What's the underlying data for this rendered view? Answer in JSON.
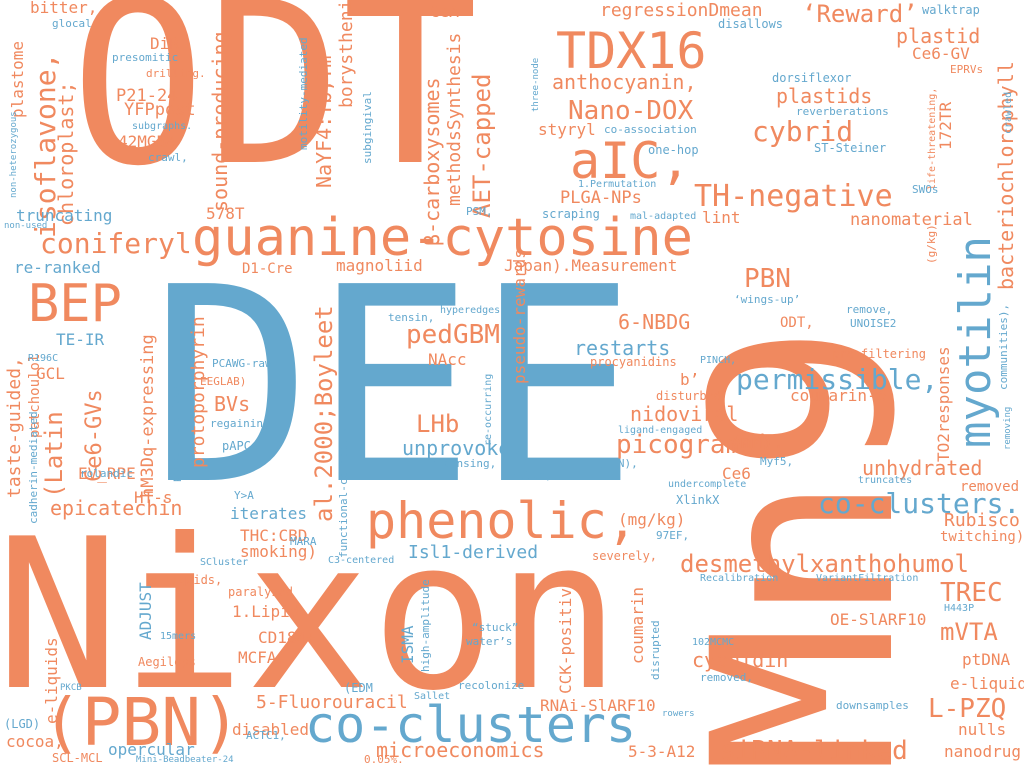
{
  "colors": {
    "orange": "#f0895f",
    "blue": "#64a8ce",
    "background": "#ffffff"
  },
  "words": [
    {
      "text": "ODT",
      "color": "orange"
    },
    {
      "text": "DEE",
      "color": "blue"
    },
    {
      "text": "Nixon",
      "color": "orange"
    },
    {
      "text": "Mn9",
      "color": "orange"
    },
    {
      "text": "guanine-cytosine",
      "color": "orange"
    },
    {
      "text": "phenolic,",
      "color": "orange"
    },
    {
      "text": "(PBN)",
      "color": "orange"
    },
    {
      "text": "co-clusters",
      "color": "blue"
    },
    {
      "text": "aIC,",
      "color": "orange"
    },
    {
      "text": "TDX16",
      "color": "orange"
    },
    {
      "text": "BEP",
      "color": "orange"
    },
    {
      "text": "myotilin",
      "color": "blue"
    },
    {
      "text": "TH-negative",
      "color": "orange"
    },
    {
      "text": "coniferyl",
      "color": "orange"
    },
    {
      "text": "isoflavone,",
      "color": "orange"
    },
    {
      "text": "pedGBM",
      "color": "orange"
    },
    {
      "text": "permissible,",
      "color": "blue"
    },
    {
      "text": "co-clusters.",
      "color": "blue"
    },
    {
      "text": "picograms)",
      "color": "orange"
    },
    {
      "text": "desmethylxanthohumol",
      "color": "orange"
    },
    {
      "text": "siRNA-linked",
      "color": "orange"
    },
    {
      "text": "cybrid",
      "color": "orange"
    },
    {
      "text": "Nano-DOX",
      "color": "orange"
    },
    {
      "text": "LHb",
      "color": "orange"
    },
    {
      "text": "PBN",
      "color": "orange"
    },
    {
      "text": "TREC",
      "color": "orange"
    },
    {
      "text": "L-PZQ",
      "color": "orange"
    },
    {
      "text": "‘Reward’",
      "color": "orange"
    },
    {
      "text": "AET-capped",
      "color": "orange"
    },
    {
      "text": "al.2000;Boyleet",
      "color": "orange"
    },
    {
      "text": "NaYF4:Yb,Tm",
      "color": "orange"
    },
    {
      "text": "bacteriochlorophyll",
      "color": "orange"
    },
    {
      "text": "epicatechin",
      "color": "orange"
    },
    {
      "text": "(Latin",
      "color": "orange"
    },
    {
      "text": "Ce6-GVs",
      "color": "orange"
    },
    {
      "text": "plastid",
      "color": "orange"
    },
    {
      "text": "plastids",
      "color": "orange"
    },
    {
      "text": "anthocyanin,",
      "color": "orange"
    },
    {
      "text": "regressionDmean",
      "color": "orange"
    },
    {
      "text": "unprovoked",
      "color": "blue"
    },
    {
      "text": "unhydrated",
      "color": "orange"
    },
    {
      "text": "restarts",
      "color": "blue"
    },
    {
      "text": "nidoviral",
      "color": "orange"
    },
    {
      "text": "mVTA",
      "color": "orange"
    },
    {
      "text": "Rubisco",
      "color": "orange"
    },
    {
      "text": "cyanidin",
      "color": "orange"
    },
    {
      "text": "microeconomics",
      "color": "orange"
    },
    {
      "text": "5-Fluorouracil",
      "color": "orange"
    },
    {
      "text": "Isl1-derived",
      "color": "blue"
    },
    {
      "text": "chloroplast;",
      "color": "orange"
    },
    {
      "text": "sound-producing",
      "color": "orange"
    },
    {
      "text": "β-carboxysomes",
      "color": "orange"
    },
    {
      "text": "methodsSynthesis",
      "color": "orange"
    },
    {
      "text": "magnoliid",
      "color": "orange"
    },
    {
      "text": "Japan).Measurement",
      "color": "orange"
    },
    {
      "text": "6-NBDG",
      "color": "orange"
    },
    {
      "text": "BVs",
      "color": "orange"
    },
    {
      "text": "protoporphyrin",
      "color": "orange"
    },
    {
      "text": "hM3Dq-expressing",
      "color": "orange"
    },
    {
      "text": "taste-guided,",
      "color": "orange"
    },
    {
      "text": "patchoulol",
      "color": "orange"
    },
    {
      "text": "EV_RPE",
      "color": "orange"
    },
    {
      "text": "GCL",
      "color": "orange"
    },
    {
      "text": "TE-IR",
      "color": "blue"
    },
    {
      "text": "re-ranked",
      "color": "blue"
    },
    {
      "text": "truncating",
      "color": "blue"
    },
    {
      "text": "578T",
      "color": "orange"
    },
    {
      "text": "D1-Cre",
      "color": "orange"
    },
    {
      "text": "PLGA-NPs",
      "color": "orange"
    },
    {
      "text": "lint",
      "color": "orange"
    },
    {
      "text": "nanomaterial",
      "color": "orange"
    },
    {
      "text": "styryl",
      "color": "orange"
    },
    {
      "text": "CeA",
      "color": "orange"
    },
    {
      "text": "bitter,",
      "color": "orange"
    },
    {
      "text": "DiR",
      "color": "orange"
    },
    {
      "text": "P21-24",
      "color": "orange"
    },
    {
      "text": "YFPpost",
      "color": "orange"
    },
    {
      "text": "42MGBA",
      "color": "orange"
    },
    {
      "text": "plastome",
      "color": "orange"
    },
    {
      "text": "borysthenica,",
      "color": "orange"
    },
    {
      "text": "pseudo-rewards",
      "color": "orange"
    },
    {
      "text": "NAcc",
      "color": "orange"
    },
    {
      "text": "coumarin-6",
      "color": "orange"
    },
    {
      "text": "TO2responses",
      "color": "orange"
    },
    {
      "text": "172TR",
      "color": "orange"
    },
    {
      "text": "Ce6-GV",
      "color": "orange"
    },
    {
      "text": "(mg/kg)",
      "color": "orange"
    },
    {
      "text": "(mM).",
      "color": "orange"
    },
    {
      "text": "THC:CBD",
      "color": "orange"
    },
    {
      "text": "smoking)",
      "color": "orange"
    },
    {
      "text": "iterates",
      "color": "blue"
    },
    {
      "text": "HT-s",
      "color": "orange"
    },
    {
      "text": "ADJUST",
      "color": "blue"
    },
    {
      "text": "1.Lipid",
      "color": "orange"
    },
    {
      "text": "CD184+",
      "color": "orange"
    },
    {
      "text": "MCFA,",
      "color": "orange"
    },
    {
      "text": "CCK-positive",
      "color": "orange"
    },
    {
      "text": "ISMA",
      "color": "blue"
    },
    {
      "text": "coumarin",
      "color": "orange"
    },
    {
      "text": "RNAi-SlARF10",
      "color": "orange"
    },
    {
      "text": "OE-SlARF10",
      "color": "orange"
    },
    {
      "text": "ptDNA",
      "color": "orange"
    },
    {
      "text": "e-liquid,",
      "color": "orange"
    },
    {
      "text": "nanodrug",
      "color": "orange"
    },
    {
      "text": "nulls",
      "color": "orange"
    },
    {
      "text": "cocoa,",
      "color": "orange"
    },
    {
      "text": "opercular",
      "color": "blue"
    },
    {
      "text": "disabled",
      "color": "orange"
    },
    {
      "text": "5-3-A12",
      "color": "orange"
    },
    {
      "text": "e-liquids",
      "color": "orange"
    },
    {
      "text": "Ce6",
      "color": "orange"
    },
    {
      "text": "ODT,",
      "color": "orange"
    },
    {
      "text": "b’",
      "color": "orange"
    },
    {
      "text": "removed",
      "color": "orange"
    },
    {
      "text": "twitching).",
      "color": "orange"
    },
    {
      "text": "e-liquids,",
      "color": "orange"
    },
    {
      "text": "paralyzed",
      "color": "orange"
    },
    {
      "text": "Aegilops",
      "color": "orange"
    },
    {
      "text": "severely,",
      "color": "orange"
    },
    {
      "text": "disturbed",
      "color": "orange"
    },
    {
      "text": "procyanidins",
      "color": "orange"
    },
    {
      "text": "pre-filtering",
      "color": "orange"
    },
    {
      "text": "EEGLAB)",
      "color": "orange"
    },
    {
      "text": "pAPC",
      "color": "blue"
    },
    {
      "text": "(EDM",
      "color": "blue"
    },
    {
      "text": "ACTC1,",
      "color": "blue"
    },
    {
      "text": "0.05%.",
      "color": "orange"
    },
    {
      "text": "SCL-MCL",
      "color": "orange"
    },
    {
      "text": "(LGD)",
      "color": "blue"
    },
    {
      "text": "functional-connectivity",
      "color": "blue"
    },
    {
      "text": "motility-mediated",
      "color": "blue"
    },
    {
      "text": "subgingival",
      "color": "blue"
    },
    {
      "text": "three-node",
      "color": "blue"
    },
    {
      "text": "reverberations",
      "color": "blue"
    },
    {
      "text": "dorsiflexor",
      "color": "blue"
    },
    {
      "text": "ST-Steiner",
      "color": "blue"
    },
    {
      "text": "co-association",
      "color": "blue"
    },
    {
      "text": "one-hop",
      "color": "blue"
    },
    {
      "text": "1.Permutation",
      "color": "blue"
    },
    {
      "text": "mal-adapted",
      "color": "blue"
    },
    {
      "text": "scraping",
      "color": "blue"
    },
    {
      "text": "PSM,",
      "color": "blue"
    },
    {
      "text": "walktrap",
      "color": "blue"
    },
    {
      "text": "disallows",
      "color": "blue"
    },
    {
      "text": "glocal",
      "color": "blue"
    },
    {
      "text": "presomitic",
      "color": "blue"
    },
    {
      "text": "drilling.",
      "color": "orange"
    },
    {
      "text": "subgraphs.",
      "color": "blue"
    },
    {
      "text": "crawl,",
      "color": "blue"
    },
    {
      "text": "non-heterozygous",
      "color": "blue"
    },
    {
      "text": "non-used",
      "color": "blue"
    },
    {
      "text": "EPRVs",
      "color": "orange"
    },
    {
      "text": "life-threatening,",
      "color": "orange"
    },
    {
      "text": "crawled",
      "color": "blue"
    },
    {
      "text": "SWOs",
      "color": "blue"
    },
    {
      "text": "(g/kg)",
      "color": "orange"
    },
    {
      "text": "‘wings-up’",
      "color": "blue"
    },
    {
      "text": "remove,",
      "color": "blue"
    },
    {
      "text": "UNOISE2",
      "color": "blue"
    },
    {
      "text": "communities),",
      "color": "blue"
    },
    {
      "text": "removing",
      "color": "blue"
    },
    {
      "text": "tensin,",
      "color": "blue"
    },
    {
      "text": "hyperedges",
      "color": "blue"
    },
    {
      "text": "PCAWG-raw",
      "color": "blue"
    },
    {
      "text": "re-occurring",
      "color": "blue"
    },
    {
      "text": "cleansing,",
      "color": "blue"
    },
    {
      "text": "nulls,",
      "color": "blue"
    },
    {
      "text": "(TTN),",
      "color": "blue"
    },
    {
      "text": "ligand-engaged",
      "color": "blue"
    },
    {
      "text": "PINCH,",
      "color": "blue"
    },
    {
      "text": "Myf5,",
      "color": "blue"
    },
    {
      "text": "truncates",
      "color": "blue"
    },
    {
      "text": "undercomplete",
      "color": "blue"
    },
    {
      "text": "XlinkX",
      "color": "blue"
    },
    {
      "text": "97EF,",
      "color": "blue"
    },
    {
      "text": "R196C",
      "color": "blue"
    },
    {
      "text": "phospho-peptides",
      "color": "blue"
    },
    {
      "text": "cadherin-mediated",
      "color": "blue"
    },
    {
      "text": "rolandic",
      "color": "blue"
    },
    {
      "text": "Y>A",
      "color": "blue"
    },
    {
      "text": "MARA",
      "color": "blue"
    },
    {
      "text": "regaining",
      "color": "blue"
    },
    {
      "text": "SCluster",
      "color": "blue"
    },
    {
      "text": "C3-centered",
      "color": "blue"
    },
    {
      "text": "15mers",
      "color": "blue"
    },
    {
      "text": "high-amplitude",
      "color": "blue"
    },
    {
      "text": "“stuck”",
      "color": "blue"
    },
    {
      "text": "water’s",
      "color": "blue"
    },
    {
      "text": "disrupted",
      "color": "blue"
    },
    {
      "text": "Recalibration",
      "color": "blue"
    },
    {
      "text": "VariantFiltration",
      "color": "blue"
    },
    {
      "text": "H443P",
      "color": "blue"
    },
    {
      "text": "102MCMC",
      "color": "blue"
    },
    {
      "text": "removed,",
      "color": "blue"
    },
    {
      "text": "downsamples",
      "color": "blue"
    },
    {
      "text": "rowers",
      "color": "blue"
    },
    {
      "text": "recolonize",
      "color": "blue"
    },
    {
      "text": "Sallet",
      "color": "blue"
    },
    {
      "text": "PKCB",
      "color": "blue"
    },
    {
      "text": "Mini-Beadbeater-24",
      "color": "blue"
    }
  ]
}
